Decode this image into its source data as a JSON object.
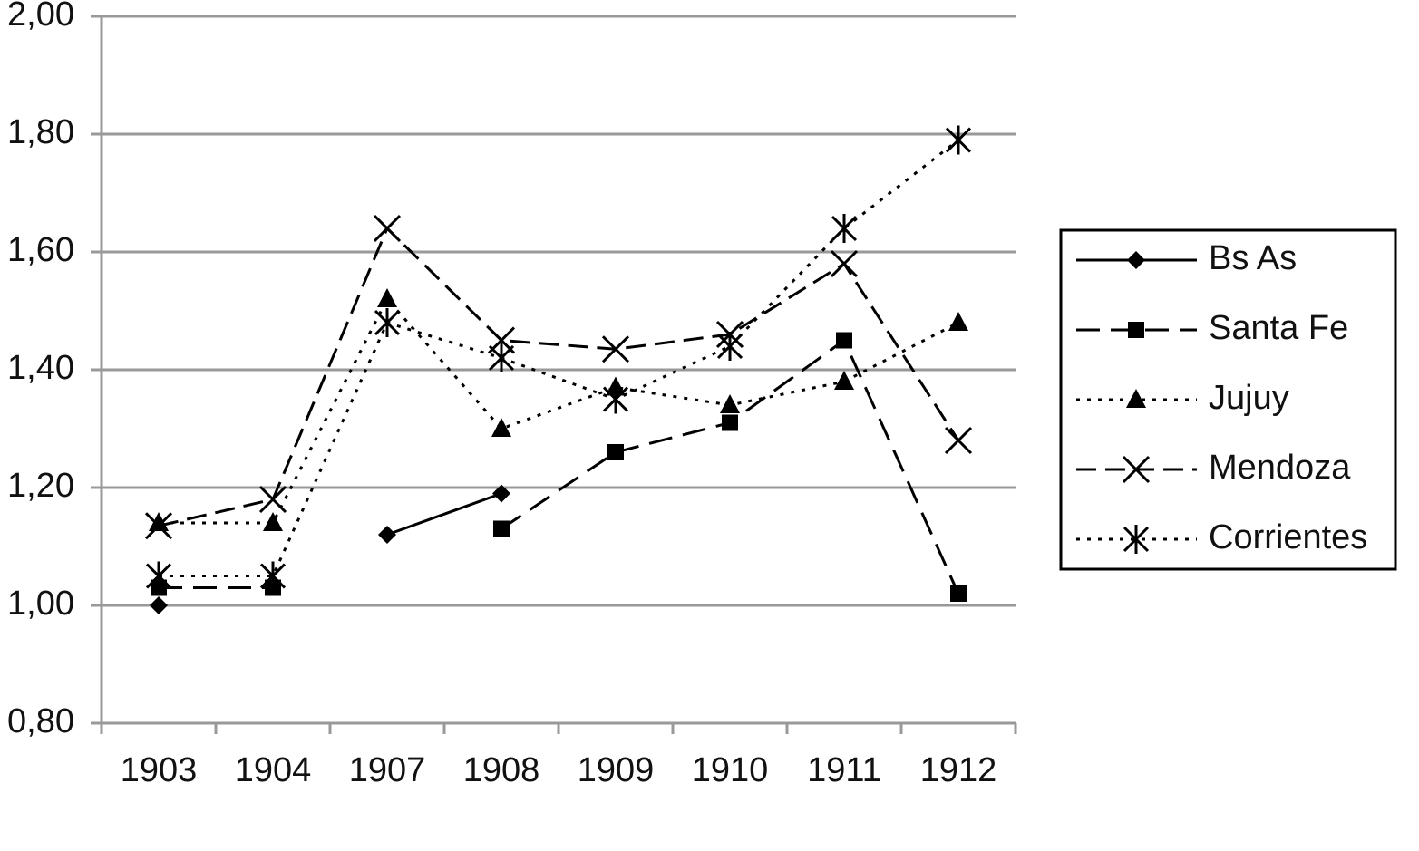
{
  "chart_data": {
    "type": "line",
    "categories": [
      "1903",
      "1904",
      "1907",
      "1908",
      "1909",
      "1910",
      "1911",
      "1912"
    ],
    "series": [
      {
        "name": "Bs As",
        "color": "#000000",
        "marker": "diamond",
        "dash": "solid",
        "values": [
          1.0,
          null,
          1.12,
          1.19,
          null,
          null,
          null,
          null
        ]
      },
      {
        "name": "Santa Fe",
        "color": "#000000",
        "marker": "square",
        "dash": "long-dash",
        "values": [
          1.03,
          1.03,
          null,
          1.13,
          1.26,
          1.31,
          1.45,
          1.02
        ]
      },
      {
        "name": "Jujuy",
        "color": "#000000",
        "marker": "triangle",
        "dash": "dotted",
        "values": [
          1.14,
          1.14,
          1.52,
          1.3,
          1.37,
          1.34,
          1.38,
          1.48
        ]
      },
      {
        "name": "Mendoza",
        "color": "#000000",
        "marker": "x",
        "dash": "dashed",
        "values": [
          1.135,
          1.18,
          1.64,
          1.45,
          1.435,
          1.46,
          1.58,
          1.28
        ]
      },
      {
        "name": "Corrientes",
        "color": "#000000",
        "marker": "star",
        "dash": "dotted",
        "values": [
          1.05,
          1.05,
          1.48,
          1.42,
          1.35,
          1.44,
          1.64,
          1.79
        ]
      }
    ],
    "ylim": [
      0.8,
      2.0
    ],
    "yticks": [
      {
        "value": 0.8,
        "label": "0,80"
      },
      {
        "value": 1.0,
        "label": "1,00"
      },
      {
        "value": 1.2,
        "label": "1,20"
      },
      {
        "value": 1.4,
        "label": "1,40"
      },
      {
        "value": 1.6,
        "label": "1,60"
      },
      {
        "value": 1.8,
        "label": "1,80"
      },
      {
        "value": 2.0,
        "label": "2,00"
      }
    ],
    "grid": true,
    "legend": "right"
  }
}
